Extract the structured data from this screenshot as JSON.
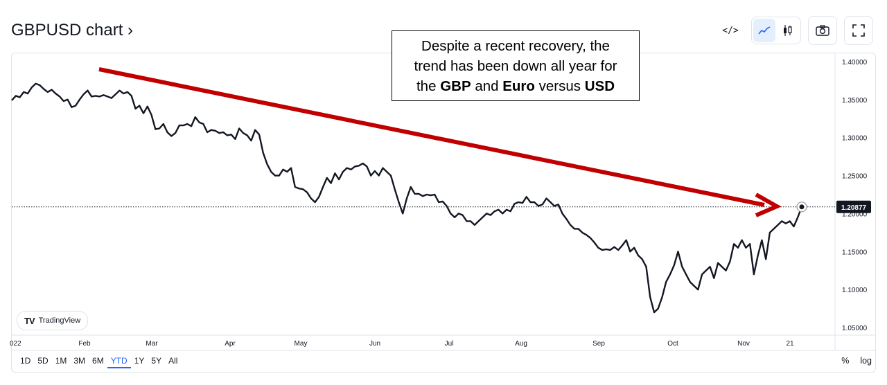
{
  "header": {
    "title": "GBPUSD chart ›"
  },
  "toolbar": {
    "embed_icon": "code-icon",
    "line_icon": "line-chart-icon",
    "candle_icon": "candlestick-icon",
    "snapshot_icon": "camera-icon",
    "fullscreen_icon": "fullscreen-icon"
  },
  "annotation": {
    "line1": "Despite a recent recovery, the",
    "line2": "trend has been down all year for",
    "line3_pre": "the ",
    "line3_b1": "GBP",
    "line3_mid": " and ",
    "line3_b2": "Euro",
    "line3_post": " versus ",
    "line3_b3": "USD"
  },
  "branding": {
    "label": "TradingView"
  },
  "ranges": [
    "1D",
    "5D",
    "1M",
    "3M",
    "6M",
    "YTD",
    "1Y",
    "5Y",
    "All"
  ],
  "active_range": "YTD",
  "scale_toggles": {
    "percent": "%",
    "log": "log"
  },
  "colors": {
    "line": "#131722",
    "arrow": "#c00000",
    "accent": "#2962ff"
  },
  "chart_data": {
    "type": "line",
    "title": "",
    "symbol": "GBPUSD",
    "x_tick_labels": [
      "022",
      "Feb",
      "Mar",
      "Apr",
      "May",
      "Jun",
      "Jul",
      "Aug",
      "Sep",
      "Oct",
      "Nov",
      "21"
    ],
    "y_tick_labels": [
      "1.40000",
      "1.35000",
      "1.30000",
      "1.25000",
      "1.20000",
      "1.15000",
      "1.10000",
      "1.05000"
    ],
    "ylim": [
      1.04,
      1.41
    ],
    "last_price": 1.20877,
    "last_price_label": "1.20877",
    "series": [
      {
        "values": [
          1.349,
          1.355,
          1.353,
          1.36,
          1.358,
          1.366,
          1.371,
          1.369,
          1.364,
          1.36,
          1.363,
          1.358,
          1.354,
          1.348,
          1.35,
          1.34,
          1.342,
          1.35,
          1.357,
          1.362,
          1.354,
          1.355,
          1.354,
          1.356,
          1.354,
          1.352,
          1.357,
          1.362,
          1.358,
          1.36,
          1.355,
          1.338,
          1.342,
          1.332,
          1.341,
          1.33,
          1.311,
          1.312,
          1.318,
          1.307,
          1.302,
          1.306,
          1.316,
          1.316,
          1.318,
          1.315,
          1.327,
          1.32,
          1.318,
          1.307,
          1.31,
          1.309,
          1.306,
          1.307,
          1.303,
          1.304,
          1.298,
          1.312,
          1.306,
          1.303,
          1.296,
          1.31,
          1.304,
          1.28,
          1.265,
          1.255,
          1.25,
          1.25,
          1.258,
          1.255,
          1.26,
          1.235,
          1.233,
          1.232,
          1.228,
          1.22,
          1.215,
          1.222,
          1.235,
          1.247,
          1.24,
          1.253,
          1.245,
          1.255,
          1.26,
          1.258,
          1.262,
          1.263,
          1.266,
          1.262,
          1.25,
          1.256,
          1.25,
          1.26,
          1.255,
          1.25,
          1.232,
          1.215,
          1.2,
          1.22,
          1.235,
          1.226,
          1.226,
          1.223,
          1.225,
          1.224,
          1.225,
          1.215,
          1.216,
          1.21,
          1.2,
          1.195,
          1.2,
          1.198,
          1.19,
          1.19,
          1.185,
          1.19,
          1.195,
          1.2,
          1.198,
          1.203,
          1.205,
          1.2,
          1.205,
          1.203,
          1.213,
          1.215,
          1.214,
          1.222,
          1.215,
          1.215,
          1.21,
          1.212,
          1.22,
          1.215,
          1.21,
          1.212,
          1.2,
          1.193,
          1.185,
          1.18,
          1.18,
          1.175,
          1.172,
          1.168,
          1.162,
          1.155,
          1.152,
          1.153,
          1.152,
          1.156,
          1.152,
          1.158,
          1.165,
          1.15,
          1.155,
          1.145,
          1.14,
          1.13,
          1.09,
          1.07,
          1.075,
          1.09,
          1.11,
          1.12,
          1.132,
          1.15,
          1.13,
          1.12,
          1.11,
          1.105,
          1.1,
          1.12,
          1.125,
          1.13,
          1.115,
          1.135,
          1.13,
          1.125,
          1.137,
          1.16,
          1.155,
          1.165,
          1.155,
          1.16,
          1.12,
          1.145,
          1.165,
          1.14,
          1.175,
          1.18,
          1.185,
          1.19,
          1.187,
          1.19,
          1.183,
          1.195,
          1.209
        ]
      }
    ]
  }
}
